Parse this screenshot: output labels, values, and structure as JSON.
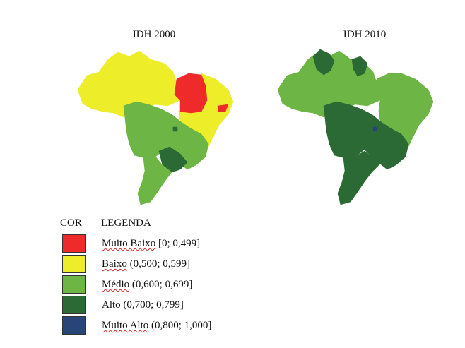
{
  "maps": [
    {
      "title": "IDH 2000",
      "regions": {
        "north": "Baixo",
        "maranhao_piaui": "Muito Baixo",
        "northeast": "Baixo",
        "alagoas": "Muito Baixo",
        "center_west": "Médio",
        "southeast": "Médio",
        "sao_paulo": "Alto",
        "south": "Médio",
        "distrito_federal": "Alto"
      }
    },
    {
      "title": "IDH 2010",
      "regions": {
        "roraima": "Alto",
        "amapa": "Alto",
        "north": "Médio",
        "northeast": "Médio",
        "center_west": "Alto",
        "southeast": "Alto",
        "south": "Alto",
        "distrito_federal": "Muito Alto"
      }
    }
  ],
  "legend": {
    "cor_header": "COR",
    "legenda_header": "LEGENDA",
    "items": [
      {
        "word": "Muito Baixo",
        "range": " [0; 0,499]",
        "color": "#ee2a2a"
      },
      {
        "word": "Baixo",
        "range": " (0,500; 0,599]",
        "color": "#eded2a"
      },
      {
        "word": "Médio",
        "range": " (0,600; 0,699]",
        "color": "#6db544"
      },
      {
        "word": "Alto",
        "range": " (0,700; 0,799]",
        "color": "#2b6a34"
      },
      {
        "word": "Muito Alto",
        "range": " (0,800; 1,000]",
        "color": "#28457a"
      }
    ]
  }
}
